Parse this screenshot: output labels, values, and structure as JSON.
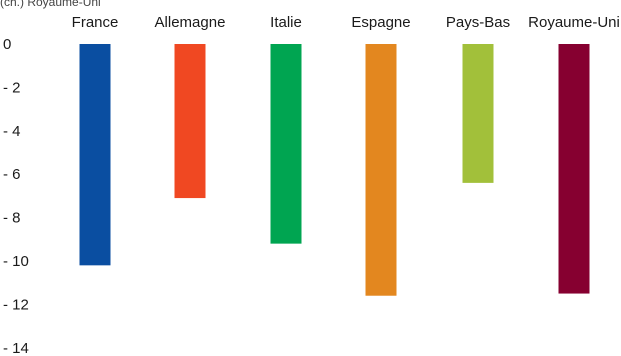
{
  "chart_data": {
    "type": "bar",
    "note": "(ch.) Royaume-Uni",
    "categories": [
      "France",
      "Allemagne",
      "Italie",
      "Espagne",
      "Pays-Bas",
      "Royaume-Uni"
    ],
    "values": [
      -10.2,
      -7.1,
      -9.2,
      -11.6,
      -6.4,
      -11.5
    ],
    "colors": [
      "#0a4ea1",
      "#f04822",
      "#00a551",
      "#e3871f",
      "#a2c03a",
      "#860030"
    ],
    "yticks": [
      0,
      -2,
      -4,
      -6,
      -8,
      -10,
      -12,
      -14
    ],
    "ytick_labels": [
      "0",
      "- 2",
      "- 4",
      "- 6",
      "- 8",
      "- 10",
      "- 12",
      "- 14"
    ],
    "ylim": [
      -14,
      0
    ],
    "grid": false,
    "legend": "none"
  }
}
